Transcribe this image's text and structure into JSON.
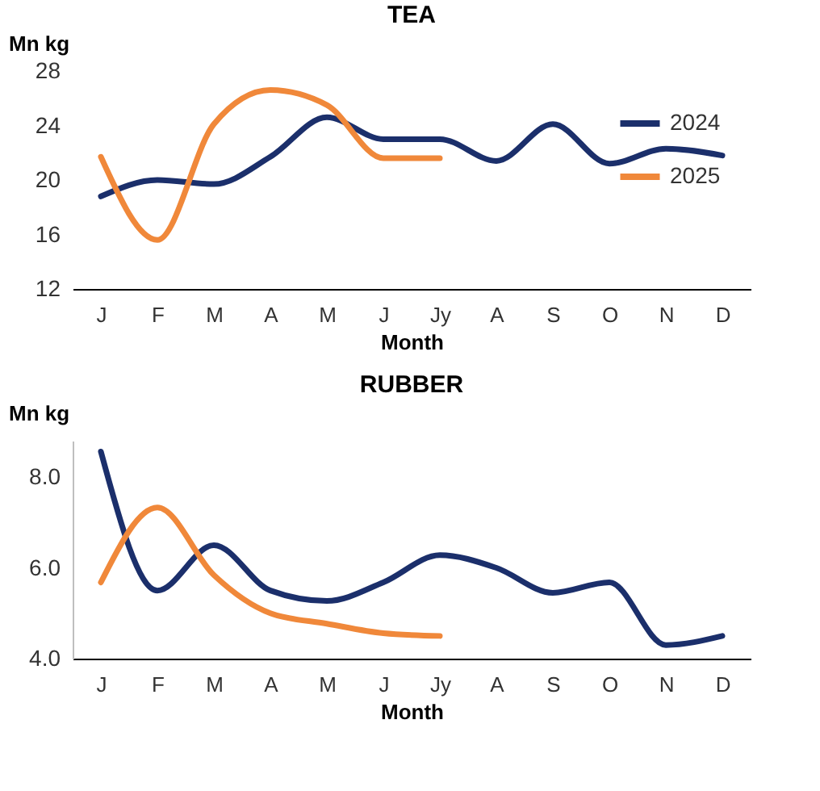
{
  "chart_data": [
    {
      "type": "line",
      "title": "TEA",
      "ylabel": "Mn kg",
      "xlabel": "Month",
      "categories": [
        "J",
        "F",
        "M",
        "A",
        "M",
        "J",
        "Jy",
        "A",
        "S",
        "O",
        "N",
        "D"
      ],
      "series": [
        {
          "name": "2024",
          "color": "#1b2f6b",
          "values": [
            18.8,
            20.0,
            19.7,
            21.7,
            24.6,
            23.0,
            23.0,
            21.4,
            24.1,
            21.2,
            22.3,
            21.8
          ]
        },
        {
          "name": "2025",
          "color": "#f0883a",
          "values": [
            21.7,
            15.6,
            24.1,
            26.6,
            25.5,
            21.6,
            21.6,
            null,
            null,
            null,
            null,
            null
          ]
        }
      ],
      "ylim": [
        12,
        28
      ],
      "yticks": [
        12,
        16,
        20,
        24,
        28
      ],
      "grid": false,
      "legend": "top right",
      "marker": "none",
      "line_style": "solid"
    },
    {
      "type": "line",
      "title": "RUBBER",
      "ylabel": "Mn kg",
      "xlabel": "Month",
      "categories": [
        "J",
        "F",
        "M",
        "A",
        "M",
        "J",
        "Jy",
        "A",
        "S",
        "O",
        "N",
        "D"
      ],
      "series": [
        {
          "name": "2024",
          "color": "#1b2f6b",
          "values": [
            8.56,
            5.5,
            6.5,
            5.5,
            5.27,
            5.68,
            6.28,
            6.0,
            5.45,
            5.68,
            4.3,
            4.5
          ]
        },
        {
          "name": "2025",
          "color": "#f0883a",
          "values": [
            5.68,
            7.33,
            5.84,
            5.0,
            4.77,
            4.56,
            4.5,
            null,
            null,
            null,
            null,
            null
          ]
        }
      ],
      "ylim": [
        4,
        8.8
      ],
      "yticks": [
        {
          "value": 4,
          "label": "4.0"
        },
        {
          "value": 6,
          "label": "6.0"
        },
        {
          "value": 8,
          "label": "8.0"
        }
      ],
      "grid": false,
      "legend": "top right",
      "marker": "none",
      "line_style": "solid"
    }
  ]
}
